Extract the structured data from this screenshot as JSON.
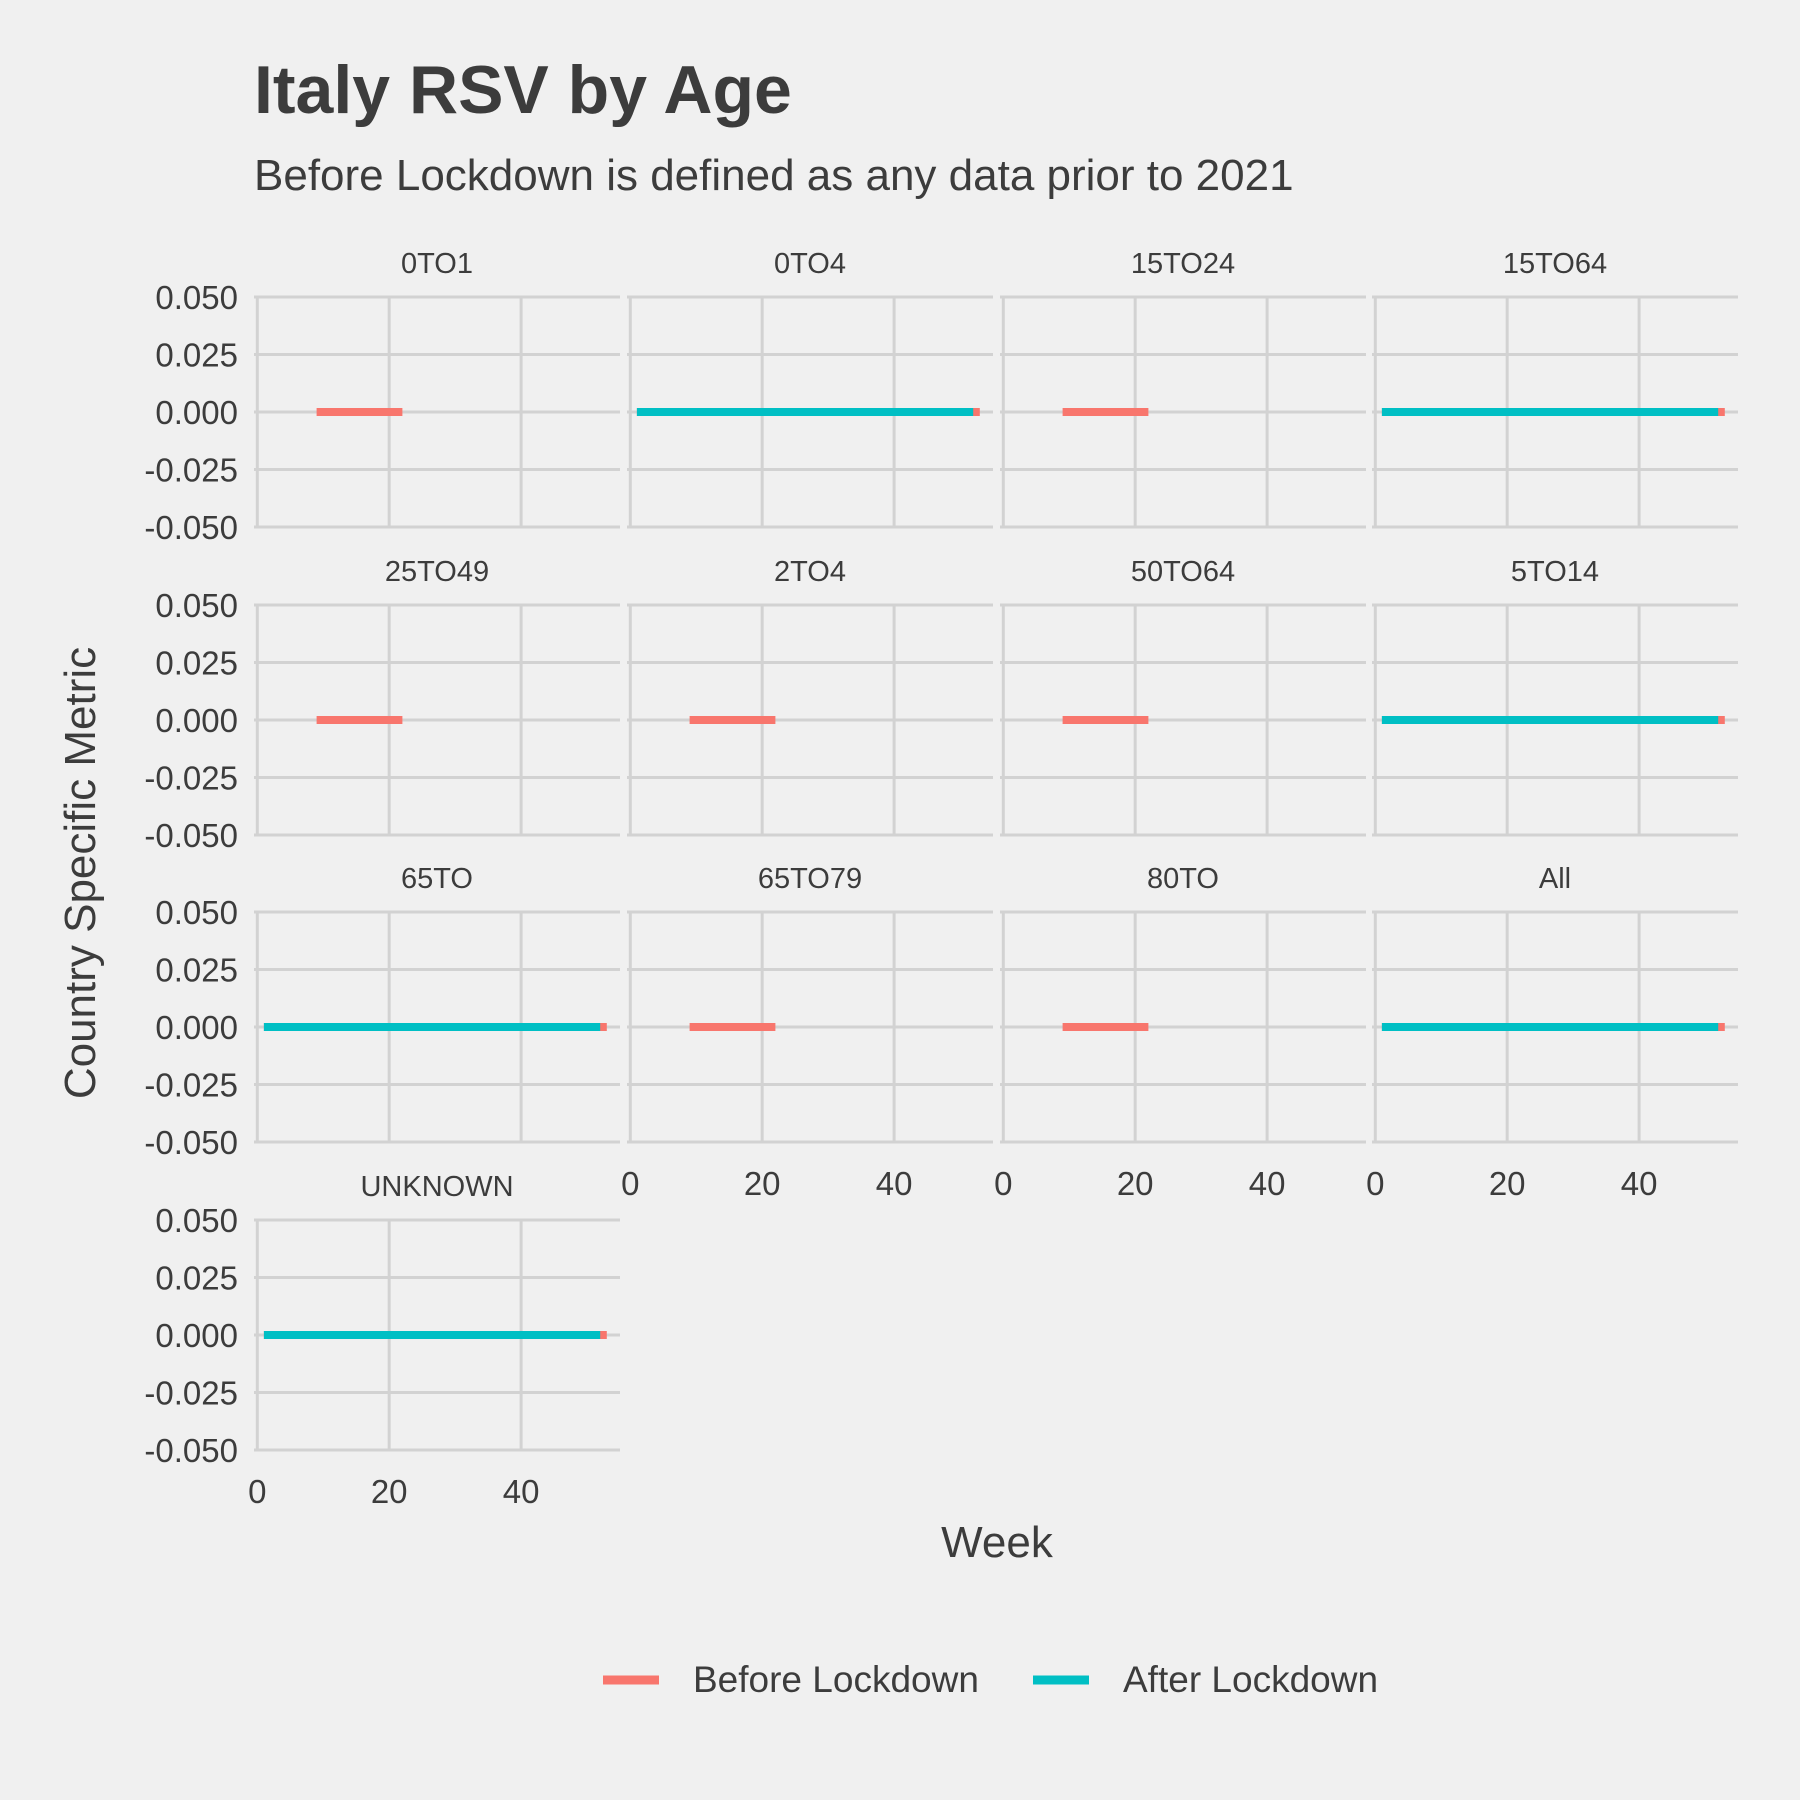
{
  "chart_data": {
    "type": "line",
    "title": "Italy RSV by Age",
    "subtitle": "Before Lockdown is defined as any data prior to 2021",
    "xlabel": "Week",
    "ylabel": "Country Specific Metric",
    "xlim": [
      -0.5,
      55
    ],
    "ylim": [
      -0.05,
      0.05
    ],
    "x_ticks": [
      0,
      20,
      40
    ],
    "x_tick_labels": [
      "0",
      "20",
      "40"
    ],
    "y_ticks": [
      0.05,
      0.025,
      0,
      -0.025,
      -0.05
    ],
    "y_tick_labels": [
      "0.050",
      "0.025",
      "0.000",
      "-0.025",
      "-0.050"
    ],
    "grid": true,
    "legend_position": "bottom",
    "series": [
      {
        "name": "Before Lockdown",
        "color": "#F8766D"
      },
      {
        "name": "After Lockdown",
        "color": "#00BFC4"
      }
    ],
    "facets": [
      {
        "label": "0TO1",
        "lines": [
          {
            "series": "Before Lockdown",
            "x": [
              9,
              22
            ],
            "y": [
              0,
              0
            ]
          }
        ]
      },
      {
        "label": "0TO4",
        "lines": [
          {
            "series": "Before Lockdown",
            "x": [
              1,
              53
            ],
            "y": [
              0,
              0
            ]
          },
          {
            "series": "After Lockdown",
            "x": [
              1,
              52
            ],
            "y": [
              0,
              0
            ]
          }
        ]
      },
      {
        "label": "15TO24",
        "lines": [
          {
            "series": "Before Lockdown",
            "x": [
              9,
              22
            ],
            "y": [
              0,
              0
            ]
          }
        ]
      },
      {
        "label": "15TO64",
        "lines": [
          {
            "series": "Before Lockdown",
            "x": [
              1,
              53
            ],
            "y": [
              0,
              0
            ]
          },
          {
            "series": "After Lockdown",
            "x": [
              1,
              52
            ],
            "y": [
              0,
              0
            ]
          }
        ]
      },
      {
        "label": "25TO49",
        "lines": [
          {
            "series": "Before Lockdown",
            "x": [
              9,
              22
            ],
            "y": [
              0,
              0
            ]
          }
        ]
      },
      {
        "label": "2TO4",
        "lines": [
          {
            "series": "Before Lockdown",
            "x": [
              9,
              22
            ],
            "y": [
              0,
              0
            ]
          }
        ]
      },
      {
        "label": "50TO64",
        "lines": [
          {
            "series": "Before Lockdown",
            "x": [
              9,
              22
            ],
            "y": [
              0,
              0
            ]
          }
        ]
      },
      {
        "label": "5TO14",
        "lines": [
          {
            "series": "Before Lockdown",
            "x": [
              1,
              53
            ],
            "y": [
              0,
              0
            ]
          },
          {
            "series": "After Lockdown",
            "x": [
              1,
              52
            ],
            "y": [
              0,
              0
            ]
          }
        ]
      },
      {
        "label": "65TO",
        "lines": [
          {
            "series": "Before Lockdown",
            "x": [
              1,
              53
            ],
            "y": [
              0,
              0
            ]
          },
          {
            "series": "After Lockdown",
            "x": [
              1,
              52
            ],
            "y": [
              0,
              0
            ]
          }
        ]
      },
      {
        "label": "65TO79",
        "lines": [
          {
            "series": "Before Lockdown",
            "x": [
              9,
              22
            ],
            "y": [
              0,
              0
            ]
          }
        ]
      },
      {
        "label": "80TO",
        "lines": [
          {
            "series": "Before Lockdown",
            "x": [
              9,
              22
            ],
            "y": [
              0,
              0
            ]
          }
        ]
      },
      {
        "label": "All",
        "lines": [
          {
            "series": "Before Lockdown",
            "x": [
              1,
              53
            ],
            "y": [
              0,
              0
            ]
          },
          {
            "series": "After Lockdown",
            "x": [
              1,
              52
            ],
            "y": [
              0,
              0
            ]
          }
        ]
      },
      {
        "label": "UNKNOWN",
        "lines": [
          {
            "series": "Before Lockdown",
            "x": [
              1,
              53
            ],
            "y": [
              0,
              0
            ]
          },
          {
            "series": "After Lockdown",
            "x": [
              1,
              52
            ],
            "y": [
              0,
              0
            ]
          }
        ]
      }
    ]
  }
}
